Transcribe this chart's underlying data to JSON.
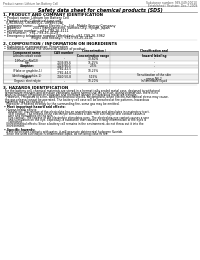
{
  "title": "Safety data sheet for chemical products (SDS)",
  "header_left": "Product name: Lithium Ion Battery Cell",
  "header_right_line1": "Substance number: 999-049-00010",
  "header_right_line2": "Established / Revision: Dec.7.2009",
  "section1_title": "1. PRODUCT AND COMPANY IDENTIFICATION",
  "section1_lines": [
    " • Product name: Lithium Ion Battery Cell",
    " • Product code: Cylindrical-type cell",
    "   (UR18650J, UR18650Z, UR18650A)",
    " • Company name:     Sanyo Electric Co., Ltd., Mobile Energy Company",
    " • Address:            2001 Kamiyamacho, Sumoto-City, Hyogo, Japan",
    " • Telephone number:  +81-799-26-4111",
    " • Fax number:  +81-799-26-4129",
    " • Emergency telephone number (Weekday): +81-799-26-3962",
    "                            (Night and holiday): +81-799-26-4101"
  ],
  "section2_title": "2. COMPOSITION / INFORMATION ON INGREDIENTS",
  "section2_lines": [
    " • Substance or preparation: Preparation",
    " • Information about the chemical nature of product:"
  ],
  "table_headers": [
    "Component name",
    "CAS number",
    "Concentration /\nConcentration range",
    "Classification and\nhazard labeling"
  ],
  "table_rows": [
    [
      "Lithium cobalt oxide\n(LiMnxCoyNizO2)",
      "-",
      "30-60%",
      "-"
    ],
    [
      "Iron",
      "7439-89-6",
      "15-25%",
      "-"
    ],
    [
      "Aluminum",
      "7429-90-5",
      "2-5%",
      "-"
    ],
    [
      "Graphite\n(Flake or graphite-1)\n(Artificial graphite-1)",
      "7782-42-5\n7782-44-0",
      "10-25%",
      "-"
    ],
    [
      "Copper",
      "7440-50-8",
      "5-15%",
      "Sensitization of the skin\ngroup N6.2"
    ],
    [
      "Organic electrolyte",
      "-",
      "10-20%",
      "Inflammable liquid"
    ]
  ],
  "section3_title": "3. HAZARDS IDENTIFICATION",
  "section3_lines": [
    "  For the battery cell, chemical materials are stored in a hermetically sealed metal case, designed to withstand",
    "  temperature changes and pressure variations during normal use. As a result, during normal use, there is no",
    "  physical danger of ignition or explosion and therefore danger of hazardous materials leakage.",
    "    However, if exposed to a fire, added mechanical shocks, decomposed, when electro-mechanical stress may cause.",
    "  the gas release cannot be operated. The battery cell case will be breached at fire patterns, hazardous",
    "  materials may be released.",
    "    Moreover, if heated strongly by the surrounding fire, some gas may be emitted."
  ],
  "section3_sub1": " • Most important hazard and effects:",
  "section3_sub1_lines": [
    "    Human health effects:",
    "      Inhalation: The release of the electrolyte has an anaesthesia action and stimulates in respiratory tract.",
    "      Skin contact: The release of the electrolyte stimulates a skin. The electrolyte skin contact causes a",
    "      sore and stimulation on the skin.",
    "      Eye contact: The release of the electrolyte stimulates eyes. The electrolyte eye contact causes a sore",
    "      and stimulation on the eye. Especially, a substance that causes a strong inflammation of the eyes is",
    "      contained.",
    "    Environmental effects: Since a battery cell remains in the environment, do not throw out it into the",
    "    environment."
  ],
  "section3_sub2": " • Specific hazards:",
  "section3_sub2_lines": [
    "    If the electrolyte contacts with water, it will generate detrimental hydrogen fluoride.",
    "    Since the used electrolyte is inflammable liquid, do not bring close to fire."
  ],
  "bg_color": "#ffffff",
  "text_color": "#000000",
  "gray_text": "#555555",
  "table_header_bg": "#cccccc",
  "table_alt_bg": "#eeeeee",
  "table_border": "#999999"
}
